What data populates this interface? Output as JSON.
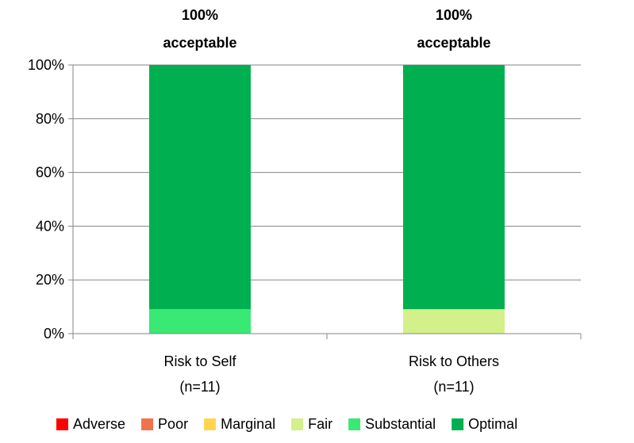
{
  "chart_data": {
    "type": "bar",
    "stacked": true,
    "categories": [
      {
        "line1": "Risk to Self",
        "line2": "(n=11)"
      },
      {
        "line1": "Risk to Others",
        "line2": "(n=11)"
      }
    ],
    "series": [
      {
        "name": "Adverse",
        "color": "#ff0000",
        "values": [
          0,
          0
        ]
      },
      {
        "name": "Poor",
        "color": "#f4714f",
        "values": [
          0,
          0
        ]
      },
      {
        "name": "Marginal",
        "color": "#ffd54f",
        "values": [
          0,
          0
        ]
      },
      {
        "name": "Fair",
        "color": "#d4f08a",
        "values": [
          0,
          9.1
        ]
      },
      {
        "name": "Substantial",
        "color": "#3ae874",
        "values": [
          9.1,
          0
        ]
      },
      {
        "name": "Optimal",
        "color": "#00b050",
        "values": [
          90.9,
          90.9
        ]
      }
    ],
    "annotations": [
      {
        "line1": "100%",
        "line2": "acceptable"
      },
      {
        "line1": "100%",
        "line2": "acceptable"
      }
    ],
    "y_ticks": [
      "0%",
      "20%",
      "40%",
      "60%",
      "80%",
      "100%"
    ],
    "ylim": [
      0,
      100
    ],
    "grid": true,
    "legend_position": "bottom"
  }
}
